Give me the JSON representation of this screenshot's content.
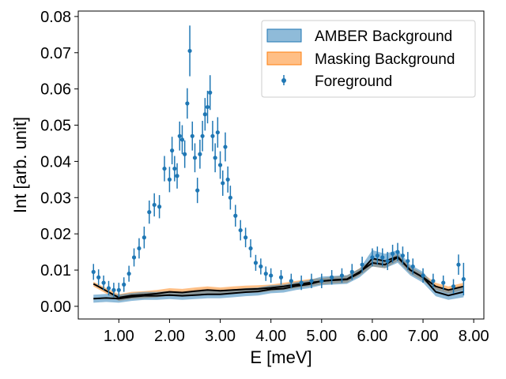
{
  "chart_data": {
    "type": "line",
    "title": "",
    "xlabel": "E [meV]",
    "ylabel": "Int [arb. unit]",
    "xlim": [
      0.2,
      8.2
    ],
    "ylim": [
      -0.0035,
      0.0815
    ],
    "xticks": [
      1,
      2,
      3,
      4,
      5,
      6,
      7,
      8
    ],
    "xtick_labels": [
      "1.00",
      "2.00",
      "3.00",
      "4.00",
      "5.00",
      "6.00",
      "7.00",
      "8.00"
    ],
    "yticks": [
      0,
      0.01,
      0.02,
      0.03,
      0.04,
      0.05,
      0.06,
      0.07,
      0.08
    ],
    "ytick_labels": [
      "0.00",
      "0.01",
      "0.02",
      "0.03",
      "0.04",
      "0.05",
      "0.06",
      "0.07",
      "0.08"
    ],
    "grid": false,
    "legend_position": "top-right",
    "legend": [
      {
        "key": "amber",
        "label": "AMBER Background"
      },
      {
        "key": "masking",
        "label": "Masking Background"
      },
      {
        "key": "foreground",
        "label": "Foreground"
      }
    ],
    "colors": {
      "foreground": "#1f77b4",
      "amber_fill": "#1f77b4",
      "masking_fill": "#ff7f0e",
      "line": "#000000"
    },
    "bands": [
      {
        "name": "Masking Background",
        "key": "masking",
        "x": [
          0.5,
          0.75,
          1.0,
          1.25,
          1.5,
          1.75,
          2.0,
          2.25,
          2.5,
          2.75,
          3.0,
          3.25,
          3.5,
          3.75,
          4.0,
          4.25,
          4.5,
          4.75,
          5.0,
          5.25,
          5.5,
          5.75,
          6.0,
          6.25,
          6.5,
          6.75,
          7.0,
          7.25,
          7.5,
          7.8
        ],
        "lower": [
          0.0055,
          0.0035,
          0.0015,
          0.002,
          0.0022,
          0.0025,
          0.003,
          0.0028,
          0.0032,
          0.0035,
          0.0033,
          0.0035,
          0.0037,
          0.0038,
          0.0042,
          0.0045,
          0.005,
          0.0055,
          0.006,
          0.0063,
          0.0065,
          0.0085,
          0.011,
          0.0105,
          0.0125,
          0.009,
          0.007,
          0.0045,
          0.0035,
          0.0045
        ],
        "upper": [
          0.0068,
          0.005,
          0.0033,
          0.004,
          0.0042,
          0.0045,
          0.005,
          0.0048,
          0.0052,
          0.0055,
          0.0052,
          0.0055,
          0.0057,
          0.0058,
          0.006,
          0.0065,
          0.007,
          0.0075,
          0.0078,
          0.0082,
          0.0085,
          0.0105,
          0.013,
          0.0125,
          0.0145,
          0.011,
          0.009,
          0.0065,
          0.0055,
          0.0065
        ]
      },
      {
        "name": "AMBER Background",
        "key": "amber",
        "x": [
          0.5,
          0.75,
          1.0,
          1.25,
          1.5,
          1.75,
          2.0,
          2.25,
          2.5,
          2.75,
          3.0,
          3.25,
          3.5,
          3.75,
          4.0,
          4.25,
          4.5,
          4.75,
          5.0,
          5.25,
          5.5,
          5.75,
          6.0,
          6.25,
          6.5,
          6.75,
          7.0,
          7.25,
          7.5,
          7.8
        ],
        "lower": [
          0.001,
          0.0012,
          0.001,
          0.0015,
          0.0018,
          0.0018,
          0.002,
          0.0018,
          0.002,
          0.0022,
          0.0022,
          0.0025,
          0.0028,
          0.003,
          0.0036,
          0.0038,
          0.0045,
          0.005,
          0.0058,
          0.006,
          0.0062,
          0.008,
          0.011,
          0.0105,
          0.012,
          0.0085,
          0.0065,
          0.0028,
          0.0018,
          0.0025
        ],
        "upper": [
          0.0032,
          0.0034,
          0.0032,
          0.0037,
          0.004,
          0.004,
          0.0042,
          0.004,
          0.0042,
          0.0044,
          0.0044,
          0.0047,
          0.005,
          0.0052,
          0.0058,
          0.006,
          0.0067,
          0.0072,
          0.0082,
          0.0084,
          0.0086,
          0.0104,
          0.0155,
          0.0145,
          0.0155,
          0.0115,
          0.0095,
          0.0052,
          0.0042,
          0.0055
        ]
      }
    ],
    "lines": [
      {
        "name": "Masking Background mean",
        "x": [
          0.5,
          0.75,
          1.0,
          1.25,
          1.5,
          1.75,
          2.0,
          2.25,
          2.5,
          2.75,
          3.0,
          3.25,
          3.5,
          3.75,
          4.0,
          4.25,
          4.5,
          4.75,
          5.0,
          5.25,
          5.5,
          5.75,
          6.0,
          6.25,
          6.5,
          6.75,
          7.0,
          7.25,
          7.5,
          7.8
        ],
        "y": [
          0.0062,
          0.0043,
          0.0024,
          0.003,
          0.0032,
          0.0035,
          0.004,
          0.0038,
          0.0042,
          0.0045,
          0.0043,
          0.0045,
          0.0047,
          0.0048,
          0.0051,
          0.0055,
          0.006,
          0.0065,
          0.0069,
          0.0073,
          0.0075,
          0.0095,
          0.012,
          0.0115,
          0.0135,
          0.01,
          0.008,
          0.0055,
          0.0045,
          0.0055
        ]
      },
      {
        "name": "AMBER Background mean",
        "x": [
          0.5,
          0.75,
          1.0,
          1.25,
          1.5,
          1.75,
          2.0,
          2.25,
          2.5,
          2.75,
          3.0,
          3.25,
          3.5,
          3.75,
          4.0,
          4.25,
          4.5,
          4.75,
          5.0,
          5.25,
          5.5,
          5.75,
          6.0,
          6.25,
          6.5,
          6.75,
          7.0,
          7.25,
          7.5,
          7.8
        ],
        "y": [
          0.0021,
          0.0023,
          0.0021,
          0.0026,
          0.0029,
          0.0029,
          0.0031,
          0.0029,
          0.0031,
          0.0033,
          0.0033,
          0.0036,
          0.0039,
          0.0041,
          0.0047,
          0.0049,
          0.0056,
          0.0061,
          0.007,
          0.0072,
          0.0074,
          0.0092,
          0.0132,
          0.0125,
          0.0137,
          0.01,
          0.008,
          0.004,
          0.003,
          0.004
        ]
      }
    ],
    "series": [
      {
        "name": "Foreground",
        "key": "foreground",
        "type": "errorbar",
        "x": [
          0.5,
          0.6,
          0.7,
          0.8,
          0.9,
          1.0,
          1.1,
          1.2,
          1.3,
          1.4,
          1.5,
          1.6,
          1.7,
          1.8,
          1.9,
          2.0,
          2.05,
          2.1,
          2.15,
          2.2,
          2.25,
          2.3,
          2.35,
          2.4,
          2.45,
          2.5,
          2.55,
          2.6,
          2.65,
          2.7,
          2.75,
          2.8,
          2.85,
          2.9,
          2.95,
          3.0,
          3.05,
          3.1,
          3.15,
          3.2,
          3.3,
          3.4,
          3.5,
          3.6,
          3.7,
          3.8,
          3.9,
          4.0,
          4.2,
          4.4,
          4.6,
          4.8,
          5.0,
          5.2,
          5.4,
          5.6,
          5.8,
          6.0,
          6.1,
          6.2,
          6.3,
          6.4,
          6.5,
          6.6,
          6.7,
          6.8,
          7.0,
          7.2,
          7.4,
          7.6,
          7.7,
          7.8
        ],
        "y": [
          0.0095,
          0.008,
          0.0065,
          0.005,
          0.0045,
          0.0045,
          0.006,
          0.009,
          0.0135,
          0.016,
          0.019,
          0.026,
          0.028,
          0.0275,
          0.038,
          0.035,
          0.043,
          0.038,
          0.036,
          0.047,
          0.046,
          0.042,
          0.056,
          0.0705,
          0.047,
          0.041,
          0.032,
          0.042,
          0.047,
          0.053,
          0.055,
          0.059,
          0.047,
          0.041,
          0.048,
          0.039,
          0.034,
          0.044,
          0.035,
          0.03,
          0.025,
          0.021,
          0.019,
          0.016,
          0.012,
          0.011,
          0.009,
          0.0085,
          0.008,
          0.007,
          0.0065,
          0.007,
          0.007,
          0.008,
          0.0085,
          0.0095,
          0.0115,
          0.0135,
          0.014,
          0.0135,
          0.0125,
          0.0145,
          0.015,
          0.014,
          0.0125,
          0.011,
          0.0085,
          0.007,
          0.0065,
          0.0055,
          0.0115,
          0.0075
        ],
        "yerr": [
          0.0022,
          0.0022,
          0.002,
          0.002,
          0.002,
          0.002,
          0.002,
          0.0022,
          0.0025,
          0.0028,
          0.003,
          0.0032,
          0.0032,
          0.0032,
          0.0035,
          0.0035,
          0.0038,
          0.0035,
          0.0035,
          0.004,
          0.004,
          0.0038,
          0.0042,
          0.007,
          0.004,
          0.004,
          0.0035,
          0.004,
          0.0042,
          0.0045,
          0.0045,
          0.0048,
          0.0042,
          0.004,
          0.0042,
          0.0038,
          0.0035,
          0.004,
          0.0036,
          0.0033,
          0.003,
          0.0028,
          0.0027,
          0.0025,
          0.0022,
          0.0022,
          0.002,
          0.002,
          0.002,
          0.002,
          0.002,
          0.002,
          0.002,
          0.002,
          0.002,
          0.0022,
          0.0022,
          0.0025,
          0.0025,
          0.0025,
          0.0025,
          0.0025,
          0.0025,
          0.0025,
          0.0025,
          0.0022,
          0.002,
          0.002,
          0.002,
          0.002,
          0.0028,
          0.0045
        ]
      }
    ]
  }
}
